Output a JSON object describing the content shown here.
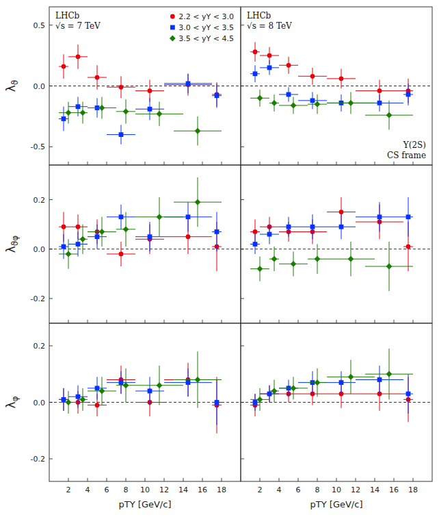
{
  "chart_data": [
    {
      "type": "scatter",
      "xlim": [
        0,
        20
      ],
      "ylim": [
        -0.65,
        0.65
      ],
      "xticks": [
        2,
        4,
        6,
        8,
        10,
        12,
        14,
        16,
        18
      ],
      "yticks": [
        -0.5,
        {
          "value": 0,
          "label": "0.0"
        },
        0.5
      ],
      "tick_labels": "y",
      "y_label": "λϑ",
      "hline": 0,
      "legend": "upper right",
      "annotations": [
        [
          "LHCb",
          "√s = 7 TeV"
        ]
      ],
      "series": [
        {
          "name": "2.2 < yΥ < 3.0",
          "color": "#e8000b",
          "marker": "circle",
          "x": [
            1.5,
            3.0,
            5.0,
            7.5,
            10.5,
            14.5,
            17.5
          ],
          "xerr": [
            0.5,
            1.0,
            1.0,
            1.5,
            1.5,
            2.5,
            0.5
          ],
          "values": [
            0.16,
            0.24,
            0.07,
            -0.01,
            -0.04,
            0.01,
            -0.07
          ],
          "yerr": [
            0.1,
            0.1,
            0.1,
            0.09,
            0.09,
            0.09,
            0.1
          ]
        },
        {
          "name": "3.0 < yΥ < 3.5",
          "color": "#0433ff",
          "marker": "square",
          "x": [
            1.5,
            3.0,
            5.0,
            7.5,
            10.5,
            14.5,
            17.5
          ],
          "xerr": [
            0.5,
            1.0,
            1.0,
            1.5,
            1.5,
            2.5,
            0.5
          ],
          "values": [
            -0.27,
            -0.17,
            -0.18,
            -0.4,
            -0.19,
            0.02,
            -0.08
          ],
          "yerr": [
            0.1,
            0.08,
            0.08,
            0.08,
            0.09,
            0.08,
            0.1
          ]
        },
        {
          "name": "3.5 < yΥ < 4.5",
          "color": "#1a7f00",
          "marker": "diamond",
          "x": [
            2.0,
            3.5,
            5.5,
            8.0,
            11.5,
            15.5
          ],
          "xerr": [
            1.0,
            0.5,
            1.5,
            1.0,
            2.5,
            2.5
          ],
          "values": [
            -0.22,
            -0.22,
            -0.18,
            -0.21,
            -0.23,
            -0.37
          ],
          "yerr": [
            0.09,
            0.09,
            0.09,
            0.1,
            0.1,
            0.12
          ]
        }
      ]
    },
    {
      "type": "scatter",
      "xlim": [
        0,
        20
      ],
      "ylim": [
        -0.65,
        0.65
      ],
      "xticks": [
        2,
        4,
        6,
        8,
        10,
        12,
        14,
        16,
        18
      ],
      "yticks": [
        -0.5,
        0,
        0.5
      ],
      "tick_labels": false,
      "hline": 0,
      "annotations": [
        [
          "LHCb",
          "√s = 8 TeV"
        ],
        [
          "Υ(2S)",
          "CS frame"
        ]
      ],
      "series": [
        {
          "color": "#e8000b",
          "marker": "circle",
          "x": [
            1.5,
            3.0,
            5.0,
            7.5,
            10.5,
            14.5,
            17.5
          ],
          "xerr": [
            0.5,
            1.0,
            1.0,
            1.5,
            1.5,
            2.5,
            0.5
          ],
          "values": [
            0.28,
            0.25,
            0.17,
            0.08,
            0.06,
            -0.04,
            -0.04
          ],
          "yerr": [
            0.08,
            0.07,
            0.07,
            0.07,
            0.08,
            0.09,
            0.1
          ]
        },
        {
          "color": "#0433ff",
          "marker": "square",
          "x": [
            1.5,
            3.0,
            5.0,
            7.5,
            10.5,
            14.5,
            17.5
          ],
          "xerr": [
            0.5,
            1.0,
            1.0,
            1.5,
            1.5,
            2.5,
            0.5
          ],
          "values": [
            0.1,
            0.15,
            -0.07,
            -0.12,
            -0.14,
            -0.14,
            -0.07
          ],
          "yerr": [
            0.07,
            0.06,
            0.06,
            0.07,
            0.07,
            0.07,
            0.09
          ]
        },
        {
          "color": "#1a7f00",
          "marker": "diamond",
          "x": [
            2.0,
            3.5,
            5.5,
            8.0,
            11.5,
            15.5
          ],
          "xerr": [
            1.0,
            0.5,
            1.5,
            1.0,
            2.5,
            2.5
          ],
          "values": [
            -0.1,
            -0.14,
            -0.16,
            -0.15,
            -0.14,
            -0.24
          ],
          "yerr": [
            0.07,
            0.07,
            0.07,
            0.08,
            0.09,
            0.12
          ]
        }
      ]
    },
    {
      "type": "scatter",
      "xlim": [
        0,
        20
      ],
      "ylim": [
        -0.3,
        0.34
      ],
      "xticks": [
        2,
        4,
        6,
        8,
        10,
        12,
        14,
        16,
        18
      ],
      "yticks": [
        -0.2,
        {
          "value": 0,
          "label": "0.0"
        },
        0.2
      ],
      "tick_labels": "y",
      "y_label": "λϑφ",
      "hline": 0,
      "series": [
        {
          "color": "#e8000b",
          "marker": "circle",
          "x": [
            1.5,
            3.0,
            5.0,
            7.5,
            10.5,
            14.5,
            17.5
          ],
          "xerr": [
            0.5,
            1.0,
            1.0,
            1.5,
            1.5,
            2.5,
            0.5
          ],
          "values": [
            0.09,
            0.09,
            0.07,
            -0.02,
            0.04,
            0.05,
            0.01
          ],
          "yerr": [
            0.06,
            0.05,
            0.05,
            0.05,
            0.06,
            0.07,
            0.1
          ]
        },
        {
          "color": "#0433ff",
          "marker": "square",
          "x": [
            1.5,
            3.0,
            5.0,
            7.5,
            10.5,
            14.5,
            17.5
          ],
          "xerr": [
            0.5,
            1.0,
            1.0,
            1.5,
            1.5,
            2.5,
            0.5
          ],
          "values": [
            0.01,
            0.02,
            0.05,
            0.13,
            0.05,
            0.13,
            0.07
          ],
          "yerr": [
            0.05,
            0.05,
            0.05,
            0.05,
            0.06,
            0.06,
            0.08
          ]
        },
        {
          "color": "#1a7f00",
          "marker": "diamond",
          "x": [
            2.0,
            3.5,
            5.5,
            8.0,
            11.5,
            15.5
          ],
          "xerr": [
            1.0,
            0.5,
            1.5,
            1.0,
            2.5,
            2.5
          ],
          "values": [
            -0.02,
            0.04,
            0.07,
            0.08,
            0.13,
            0.19
          ],
          "yerr": [
            0.06,
            0.06,
            0.06,
            0.07,
            0.08,
            0.1
          ]
        }
      ]
    },
    {
      "type": "scatter",
      "xlim": [
        0,
        20
      ],
      "ylim": [
        -0.3,
        0.34
      ],
      "xticks": [
        2,
        4,
        6,
        8,
        10,
        12,
        14,
        16,
        18
      ],
      "yticks": [
        -0.2,
        0,
        0.2
      ],
      "tick_labels": false,
      "hline": 0,
      "series": [
        {
          "color": "#e8000b",
          "marker": "circle",
          "x": [
            1.5,
            3.0,
            5.0,
            7.5,
            10.5,
            14.5,
            17.5
          ],
          "xerr": [
            0.5,
            1.0,
            1.0,
            1.5,
            1.5,
            2.5,
            0.5
          ],
          "values": [
            0.07,
            0.09,
            0.07,
            0.07,
            0.15,
            0.11,
            0.01
          ],
          "yerr": [
            0.05,
            0.04,
            0.04,
            0.05,
            0.06,
            0.07,
            0.1
          ]
        },
        {
          "color": "#0433ff",
          "marker": "square",
          "x": [
            1.5,
            3.0,
            5.0,
            7.5,
            10.5,
            14.5,
            17.5
          ],
          "xerr": [
            0.5,
            1.0,
            1.0,
            1.5,
            1.5,
            2.5,
            0.5
          ],
          "values": [
            0.02,
            0.06,
            0.09,
            0.09,
            0.09,
            0.13,
            0.13
          ],
          "yerr": [
            0.04,
            0.04,
            0.04,
            0.05,
            0.05,
            0.06,
            0.08
          ]
        },
        {
          "color": "#1a7f00",
          "marker": "diamond",
          "x": [
            2.0,
            3.5,
            5.5,
            8.0,
            11.5,
            15.5
          ],
          "xerr": [
            1.0,
            0.5,
            1.5,
            1.0,
            2.5,
            2.5
          ],
          "values": [
            -0.08,
            -0.04,
            -0.06,
            -0.04,
            -0.04,
            -0.07
          ],
          "yerr": [
            0.05,
            0.05,
            0.05,
            0.06,
            0.07,
            0.1
          ]
        }
      ]
    },
    {
      "type": "scatter",
      "xlim": [
        0,
        20
      ],
      "ylim": [
        -0.28,
        0.28
      ],
      "xticks": [
        2,
        4,
        6,
        8,
        10,
        12,
        14,
        16,
        18
      ],
      "yticks": [
        -0.2,
        {
          "value": 0,
          "label": "0.0"
        },
        0.2
      ],
      "y_label": "λφ",
      "x_label": "pTΥ [GeV/c]",
      "hline": 0,
      "series": [
        {
          "color": "#e8000b",
          "marker": "circle",
          "x": [
            1.5,
            3.0,
            5.0,
            7.5,
            10.5,
            14.5,
            17.5
          ],
          "xerr": [
            0.5,
            1.0,
            1.0,
            1.5,
            1.5,
            2.5,
            0.5
          ],
          "values": [
            0.01,
            0.0,
            -0.01,
            0.08,
            0.0,
            0.08,
            -0.01
          ],
          "yerr": [
            0.04,
            0.04,
            0.04,
            0.05,
            0.05,
            0.06,
            0.1
          ]
        },
        {
          "color": "#0433ff",
          "marker": "square",
          "x": [
            1.5,
            3.0,
            5.0,
            7.5,
            10.5,
            14.5,
            17.5
          ],
          "xerr": [
            0.5,
            1.0,
            1.0,
            1.5,
            1.5,
            2.5,
            0.5
          ],
          "values": [
            0.01,
            0.02,
            0.05,
            0.07,
            0.04,
            0.07,
            0.0
          ],
          "yerr": [
            0.04,
            0.04,
            0.04,
            0.04,
            0.05,
            0.05,
            0.08
          ]
        },
        {
          "color": "#1a7f00",
          "marker": "diamond",
          "x": [
            2.0,
            3.5,
            5.5,
            8.0,
            11.5,
            15.5
          ],
          "xerr": [
            1.0,
            0.5,
            1.5,
            1.0,
            2.5,
            2.5
          ],
          "values": [
            0.0,
            0.01,
            0.04,
            0.06,
            0.06,
            0.08
          ],
          "yerr": [
            0.04,
            0.04,
            0.05,
            0.06,
            0.07,
            0.1
          ]
        }
      ]
    },
    {
      "type": "scatter",
      "xlim": [
        0,
        20
      ],
      "ylim": [
        -0.28,
        0.28
      ],
      "xticks": [
        2,
        4,
        6,
        8,
        10,
        12,
        14,
        16,
        18
      ],
      "yticks": [
        -0.2,
        0,
        0.2
      ],
      "tick_labels": "x",
      "x_label": "pTΥ [GeV/c]",
      "hline": 0,
      "series": [
        {
          "color": "#e8000b",
          "marker": "circle",
          "x": [
            1.5,
            3.0,
            5.0,
            7.5,
            10.5,
            14.5,
            17.5
          ],
          "xerr": [
            0.5,
            1.0,
            1.0,
            1.5,
            1.5,
            2.5,
            0.5
          ],
          "values": [
            -0.01,
            0.03,
            0.03,
            0.03,
            0.03,
            0.03,
            0.01
          ],
          "yerr": [
            0.04,
            0.03,
            0.03,
            0.04,
            0.05,
            0.06,
            0.08
          ]
        },
        {
          "color": "#0433ff",
          "marker": "square",
          "x": [
            1.5,
            3.0,
            5.0,
            7.5,
            10.5,
            14.5,
            17.5
          ],
          "xerr": [
            0.5,
            1.0,
            1.0,
            1.5,
            1.5,
            2.5,
            0.5
          ],
          "values": [
            0.0,
            0.03,
            0.05,
            0.07,
            0.07,
            0.08,
            0.03
          ],
          "yerr": [
            0.03,
            0.03,
            0.03,
            0.04,
            0.04,
            0.05,
            0.07
          ]
        },
        {
          "color": "#1a7f00",
          "marker": "diamond",
          "x": [
            2.0,
            3.5,
            5.5,
            8.0,
            11.5,
            15.5
          ],
          "xerr": [
            1.0,
            0.5,
            1.5,
            1.0,
            2.5,
            2.5
          ],
          "values": [
            0.01,
            0.04,
            0.05,
            0.07,
            0.09,
            0.1
          ],
          "yerr": [
            0.04,
            0.04,
            0.04,
            0.05,
            0.06,
            0.09
          ]
        }
      ]
    }
  ]
}
